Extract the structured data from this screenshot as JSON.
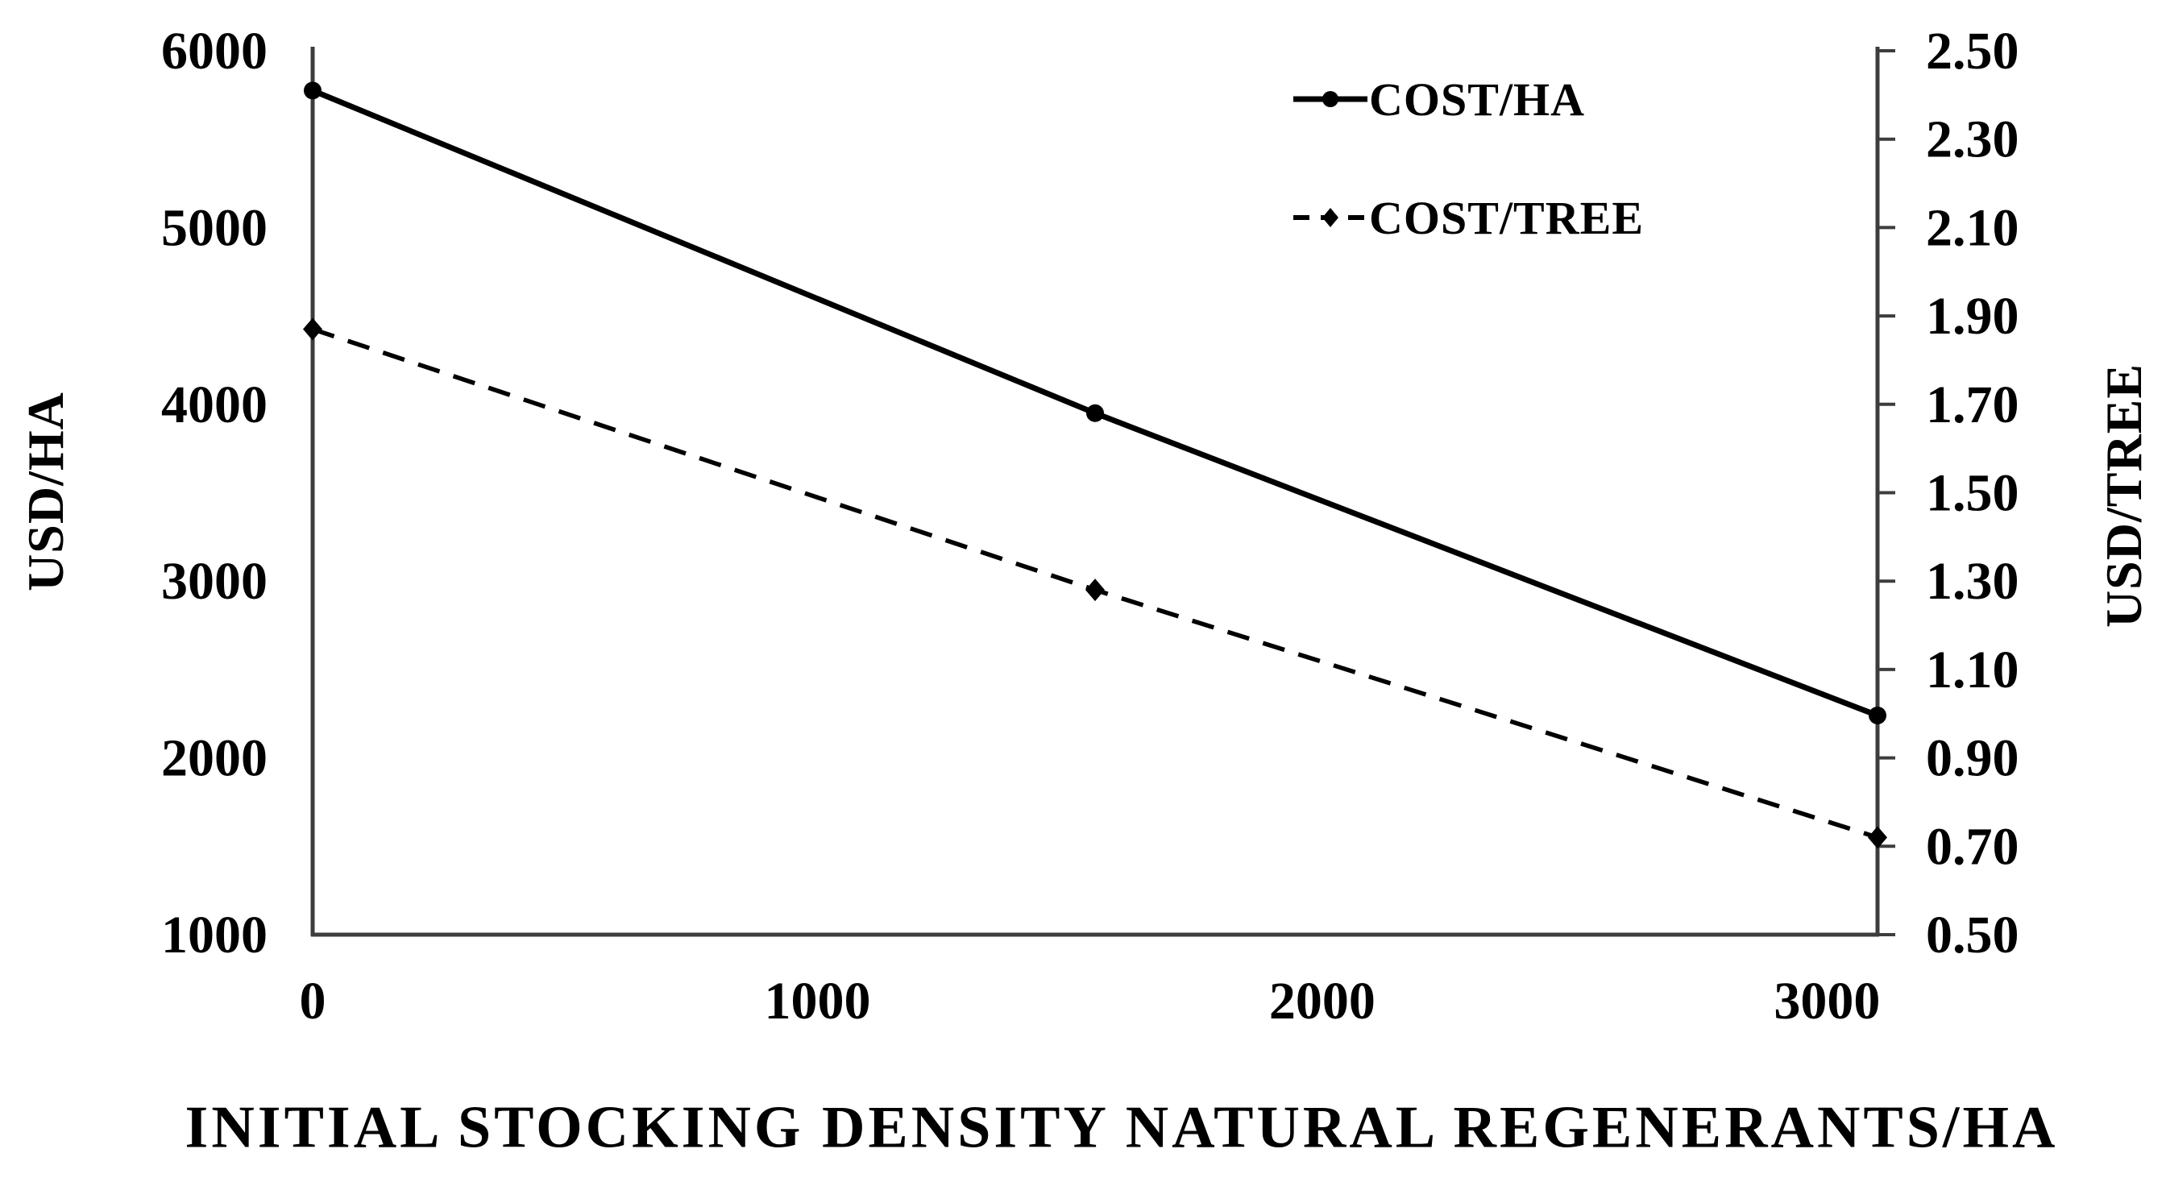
{
  "chart_data": {
    "type": "line",
    "title": "",
    "x_label": "INITIAL STOCKING DENSITY NATURAL REGENERANTS/HA",
    "y_left_label": "USD/HA",
    "y_right_label": "USD/TREE",
    "x_range": [
      0,
      3100
    ],
    "y_left_range": [
      1000,
      6000
    ],
    "y_right_range": [
      0.5,
      2.5
    ],
    "x_ticks": [
      0,
      1000,
      2000,
      3000
    ],
    "y_left_ticks": [
      6000,
      5000,
      4000,
      3000,
      2000,
      1000
    ],
    "y_right_ticks": [
      2.5,
      2.3,
      2.1,
      1.9,
      1.7,
      1.5,
      1.3,
      1.1,
      0.9,
      0.7,
      0.5
    ],
    "x": [
      0,
      1550,
      3100
    ],
    "series": [
      {
        "name": "COST/HA",
        "axis": "left",
        "line_style": "solid",
        "marker": "circle",
        "color": "#000000",
        "values": [
          5775,
          3950,
          2240
        ]
      },
      {
        "name": "COST/TREE",
        "axis": "right",
        "line_style": "dashed",
        "marker": "diamond",
        "color": "#000000",
        "values": [
          1.87,
          1.28,
          0.72
        ]
      }
    ],
    "legend_position": "inside-top-right",
    "grid": "off",
    "axis_color": "#3d3d3d",
    "background_color": "#ffffff"
  }
}
